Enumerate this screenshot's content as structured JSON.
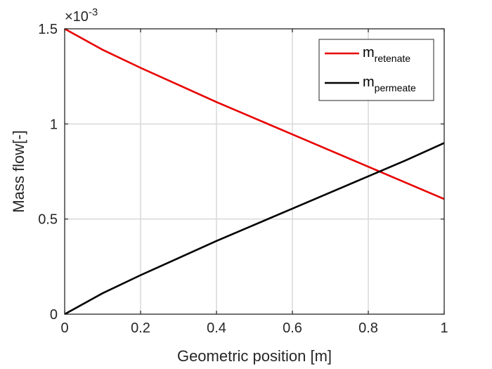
{
  "chart_data": {
    "type": "line",
    "title": "",
    "xlabel": "Geometric position [m]",
    "ylabel": "Mass flow[-]",
    "xlim": [
      0,
      1
    ],
    "ylim": [
      0,
      1.5
    ],
    "xticks": [
      0,
      0.2,
      0.4,
      0.6,
      0.8,
      1
    ],
    "xtick_labels": [
      "0",
      "0.2",
      "0.4",
      "0.6",
      "0.8",
      "1"
    ],
    "yticks": [
      0,
      0.5,
      1,
      1.5
    ],
    "ytick_labels": [
      "0",
      "0.5",
      "1",
      "1.5"
    ],
    "y_exponent": {
      "base": "×10",
      "power": "-3"
    },
    "grid": true,
    "legend_position": "top-right",
    "x": [
      0,
      0.1,
      0.2,
      0.3,
      0.4,
      0.5,
      0.6,
      0.7,
      0.8,
      0.9,
      1.0
    ],
    "series": [
      {
        "name_main": "m",
        "name_sub": "retenate",
        "color": "#e80000",
        "values": [
          1.5,
          1.39,
          1.295,
          1.205,
          1.115,
          1.03,
          0.945,
          0.86,
          0.775,
          0.69,
          0.605
        ]
      },
      {
        "name_main": "m",
        "name_sub": "permeate",
        "color": "#000000",
        "values": [
          0.0,
          0.11,
          0.205,
          0.295,
          0.385,
          0.47,
          0.555,
          0.64,
          0.725,
          0.81,
          0.9
        ]
      }
    ]
  }
}
